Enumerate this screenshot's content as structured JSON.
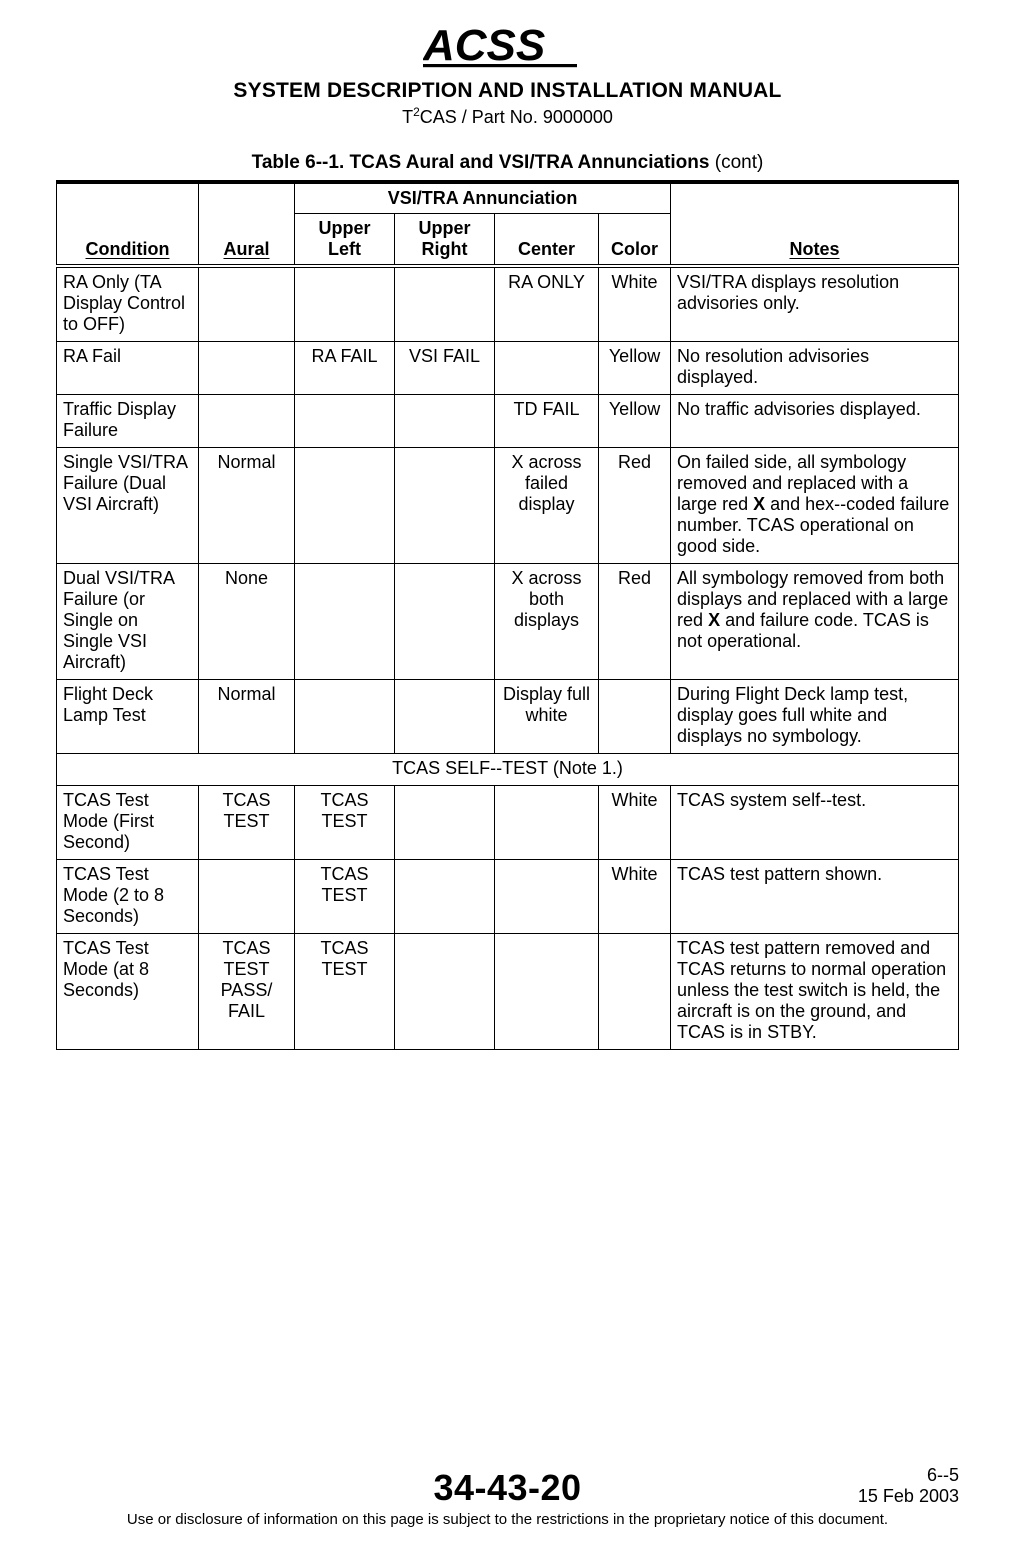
{
  "logo_text": "ACSS",
  "header": {
    "manual_title": "SYSTEM DESCRIPTION AND INSTALLATION MANUAL",
    "part_line_prefix": "T",
    "part_line_sup": "2",
    "part_line_rest": "CAS / Part No. 9000000"
  },
  "caption": {
    "prefix": "Table 6--1.  ",
    "title": "TCAS Aural and VSI/TRA Annunciations",
    "cont": " (cont)"
  },
  "columns": {
    "condition": "Condition",
    "aural": "Aural",
    "group": "VSI/TRA Annunciation",
    "upper_left": "Upper Left",
    "upper_right": "Upper Right",
    "center": "Center",
    "color": "Color",
    "notes": "Notes"
  },
  "rows": [
    {
      "condition": "RA Only\n(TA Display Control to OFF)",
      "aural": "",
      "upper_left": "",
      "upper_right": "",
      "center": "RA ONLY",
      "color": "White",
      "notes": "VSI/TRA displays resolution advisories only."
    },
    {
      "condition": "RA Fail",
      "aural": "",
      "upper_left": "RA FAIL",
      "upper_right": "VSI FAIL",
      "center": "",
      "color": "Yellow",
      "notes": "No resolution advisories displayed."
    },
    {
      "condition": "Traffic Display Failure",
      "aural": "",
      "upper_left": "",
      "upper_right": "",
      "center": "TD FAIL",
      "color": "Yellow",
      "notes": "No traffic advisories displayed."
    },
    {
      "condition": "Single VSI/TRA Failure (Dual VSI Aircraft)",
      "aural": "Normal",
      "upper_left": "",
      "upper_right": "",
      "center": "X across failed display",
      "color": "Red",
      "notes_html": "On failed side, all symbology removed and replaced with a large red <b>X</b> and hex--coded failure number.  TCAS operational on good side."
    },
    {
      "condition": "Dual VSI/TRA Failure (or Single on Single VSI Aircraft)",
      "aural": "None",
      "upper_left": "",
      "upper_right": "",
      "center": "X across both displays",
      "color": "Red",
      "notes_html": "All symbology removed from both displays and replaced with a large red <b>X</b> and failure code.  TCAS is not operational."
    },
    {
      "condition": "Flight Deck Lamp Test",
      "aural": "Normal",
      "upper_left": "",
      "upper_right": "",
      "center": "Display full white",
      "color": "",
      "notes": "During Flight Deck lamp test, display goes full white and displays no symbology."
    }
  ],
  "section_label": "TCAS SELF--TEST (Note 1.)",
  "rows2": [
    {
      "condition": "TCAS Test Mode (First Second)",
      "aural": "TCAS TEST",
      "upper_left": "TCAS TEST",
      "upper_right": "",
      "center": "",
      "color": "White",
      "notes": "TCAS system self--test."
    },
    {
      "condition": "TCAS Test Mode (2 to 8 Seconds)",
      "aural": "",
      "upper_left": "TCAS TEST",
      "upper_right": "",
      "center": "",
      "color": "White",
      "notes": "TCAS test pattern shown."
    },
    {
      "condition": "TCAS Test Mode (at 8 Seconds)",
      "aural": "TCAS TEST PASS/ FAIL",
      "upper_left": "TCAS TEST",
      "upper_right": "",
      "center": "",
      "color": "",
      "notes": "TCAS test pattern removed and TCAS returns to normal operation unless the test switch is held, the aircraft is on the ground, and TCAS is in STBY."
    }
  ],
  "footer": {
    "doc_num": "34-43-20",
    "page_num": "6--5",
    "date": "15 Feb 2003",
    "proprietary": "Use or disclosure of information on this page is subject to the restrictions in the proprietary notice of this document."
  }
}
